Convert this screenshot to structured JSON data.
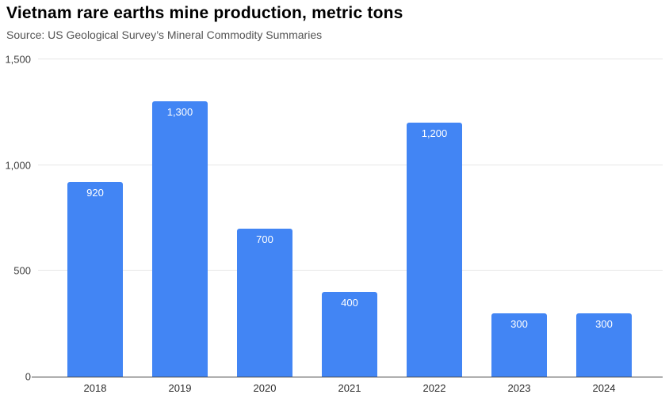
{
  "header": {
    "title": "Vietnam rare earths mine production, metric tons",
    "source": "Source: US Geological Survey’s Mineral Commodity Summaries"
  },
  "chart_data": {
    "type": "bar",
    "title": "Vietnam rare earths mine production, metric tons",
    "subtitle": "Source: US Geological Survey’s Mineral Commodity Summaries",
    "categories": [
      "2018",
      "2019",
      "2020",
      "2021",
      "2022",
      "2023",
      "2024"
    ],
    "values": [
      920,
      1300,
      700,
      400,
      1200,
      300,
      300
    ],
    "value_labels": [
      "920",
      "1,300",
      "700",
      "400",
      "1,200",
      "300",
      "300"
    ],
    "xlabel": "",
    "ylabel": "",
    "ylim": [
      0,
      1500
    ],
    "yticks": [
      0,
      500,
      1000,
      1500
    ],
    "ytick_labels": [
      "0",
      "500",
      "1,000",
      "1,500"
    ],
    "grid": true,
    "legend": false,
    "bar_color": "#4285f4",
    "value_label_color": "#ffffff",
    "gridline_color": "#e6e6e6",
    "axis_line_color": "#424242"
  }
}
